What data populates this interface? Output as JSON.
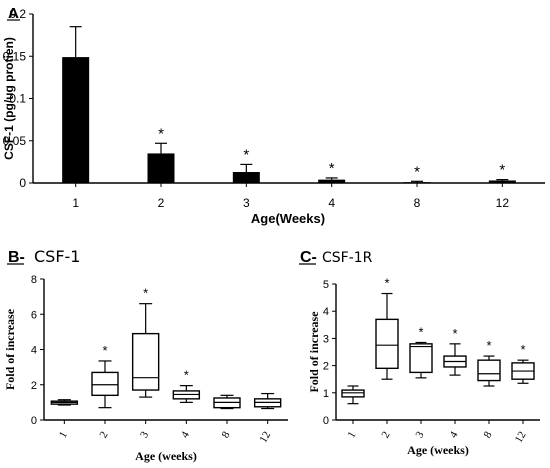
{
  "panels": {
    "a": {
      "letter": "A"
    },
    "b": {
      "letter": "B-",
      "name": "CSF-1"
    },
    "c": {
      "letter": "C-",
      "name": "CSF-1R"
    }
  },
  "chart_data": [
    {
      "id": "A",
      "type": "bar",
      "title": "",
      "xlabel": "Age(Weeks)",
      "ylabel": "CSF-1 (pg/ug protien)",
      "categories": [
        "1",
        "2",
        "3",
        "4",
        "8",
        "12"
      ],
      "values": [
        0.149,
        0.035,
        0.013,
        0.004,
        0.001,
        0.003
      ],
      "error_upper": [
        0.185,
        0.047,
        0.022,
        0.006,
        0.002,
        0.004
      ],
      "significance": [
        "",
        "*",
        "*",
        "*",
        "*",
        "*"
      ],
      "ylim": [
        0,
        0.2
      ],
      "yticks": [
        "0",
        "0.05",
        "0.1",
        "0.15",
        "0.2"
      ],
      "bar_color": "#000000",
      "grid": false
    },
    {
      "id": "B",
      "type": "box",
      "title": "CSF-1",
      "xlabel": "Age (weeks)",
      "ylabel": "Fold of increase",
      "categories": [
        "1",
        "2",
        "3",
        "4",
        "8",
        "12"
      ],
      "boxes": [
        {
          "min": 0.85,
          "q1": 0.9,
          "median": 1.0,
          "q3": 1.07,
          "max": 1.15
        },
        {
          "min": 0.7,
          "q1": 1.4,
          "median": 2.0,
          "q3": 2.7,
          "max": 3.35
        },
        {
          "min": 1.3,
          "q1": 1.7,
          "median": 2.4,
          "q3": 4.9,
          "max": 6.6
        },
        {
          "min": 1.0,
          "q1": 1.2,
          "median": 1.45,
          "q3": 1.65,
          "max": 1.95
        },
        {
          "min": 0.65,
          "q1": 0.7,
          "median": 1.0,
          "q3": 1.25,
          "max": 1.4
        },
        {
          "min": 0.65,
          "q1": 0.75,
          "median": 1.0,
          "q3": 1.2,
          "max": 1.5
        }
      ],
      "significance": [
        "",
        "*",
        "*",
        "*",
        "",
        ""
      ],
      "ylim": [
        0,
        8
      ],
      "yticks": [
        "0",
        "2",
        "4",
        "6",
        "8"
      ],
      "grid": false
    },
    {
      "id": "C",
      "type": "box",
      "title": "CSF-1R",
      "xlabel": "Age (weeks)",
      "ylabel": "Fold of increase",
      "categories": [
        "1",
        "2",
        "3",
        "4",
        "8",
        "12"
      ],
      "boxes": [
        {
          "min": 0.6,
          "q1": 0.85,
          "median": 1.0,
          "q3": 1.1,
          "max": 1.25
        },
        {
          "min": 1.5,
          "q1": 1.9,
          "median": 2.75,
          "q3": 3.7,
          "max": 4.65
        },
        {
          "min": 1.55,
          "q1": 1.75,
          "median": 2.7,
          "q3": 2.8,
          "max": 2.85
        },
        {
          "min": 1.65,
          "q1": 1.95,
          "median": 2.15,
          "q3": 2.35,
          "max": 2.8
        },
        {
          "min": 1.25,
          "q1": 1.45,
          "median": 1.7,
          "q3": 2.2,
          "max": 2.35
        },
        {
          "min": 1.35,
          "q1": 1.5,
          "median": 1.8,
          "q3": 2.1,
          "max": 2.2
        }
      ],
      "significance": [
        "",
        "*",
        "*",
        "*",
        "*",
        "*"
      ],
      "ylim": [
        0,
        5
      ],
      "yticks": [
        "0",
        "1",
        "2",
        "3",
        "4",
        "5"
      ],
      "grid": false
    }
  ]
}
